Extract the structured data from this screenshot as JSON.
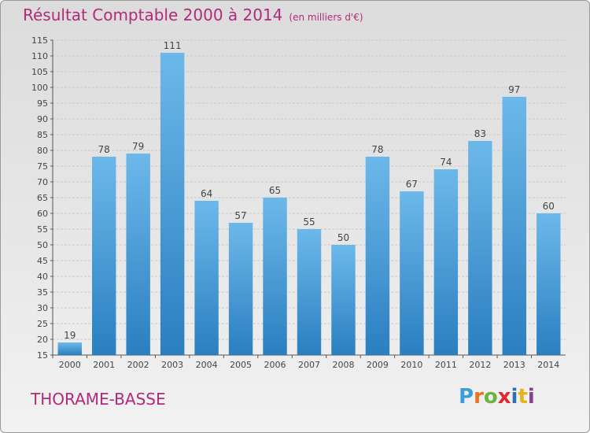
{
  "header": {
    "title": "Résultat Comptable 2000 à 2014",
    "unit": "(en milliers d'€)"
  },
  "footer": {
    "town": "THORAME-BASSE",
    "logo": "Proxiti"
  },
  "colors": {
    "title": "#b22a7a",
    "bar_top": "#6db8ea",
    "bar_bottom": "#2a7fc0",
    "logo_letters": [
      "#3a9fd8",
      "#e8741c",
      "#6cb33f",
      "#e3262d",
      "#2f6fb7",
      "#e9b21d",
      "#8a3f96"
    ]
  },
  "chart_data": {
    "type": "bar",
    "title": "Résultat Comptable 2000 à 2014",
    "subtitle": "(en milliers d'€)",
    "xlabel": "",
    "ylabel": "",
    "categories": [
      "2000",
      "2001",
      "2002",
      "2003",
      "2004",
      "2005",
      "2006",
      "2007",
      "2008",
      "2009",
      "2010",
      "2011",
      "2012",
      "2013",
      "2014"
    ],
    "values": [
      19,
      78,
      79,
      111,
      64,
      57,
      65,
      55,
      50,
      78,
      67,
      74,
      83,
      97,
      60
    ],
    "ylim": [
      15,
      115
    ],
    "yticks": [
      15,
      20,
      25,
      30,
      35,
      40,
      45,
      50,
      55,
      60,
      65,
      70,
      75,
      80,
      85,
      90,
      95,
      100,
      105,
      110,
      115
    ],
    "grid": true,
    "data_labels": true
  }
}
